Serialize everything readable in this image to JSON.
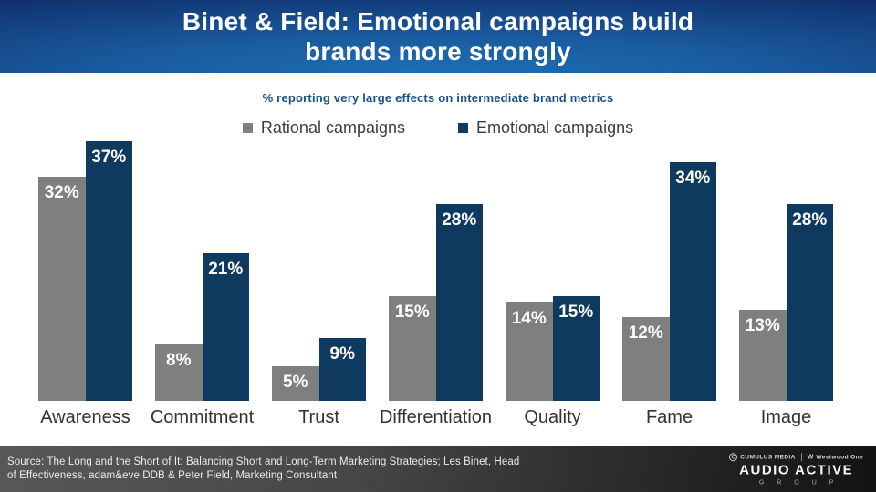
{
  "header": {
    "title_line1": "Binet & Field: Emotional campaigns build",
    "title_line2": "brands more strongly"
  },
  "subtitle": "% reporting very  large effects on intermediate brand metrics",
  "legend": [
    {
      "label": "Rational campaigns",
      "color": "#7f7f7f"
    },
    {
      "label": "Emotional campaigns",
      "color": "#0e3a60"
    }
  ],
  "chart_data": {
    "type": "bar",
    "title": "Binet & Field: Emotional campaigns build brands more strongly",
    "subtitle": "% reporting very large effects on intermediate brand metrics",
    "categories": [
      "Awareness",
      "Commitment",
      "Trust",
      "Differentiation",
      "Quality",
      "Fame",
      "Image"
    ],
    "series": [
      {
        "name": "Rational campaigns",
        "color": "#7f7f7f",
        "values": [
          32,
          8,
          5,
          15,
          14,
          12,
          13
        ],
        "labels": [
          "32%",
          "8%",
          "5%",
          "15%",
          "14%",
          "12%",
          "13%"
        ]
      },
      {
        "name": "Emotional campaigns",
        "color": "#0e3a60",
        "values": [
          37,
          21,
          9,
          28,
          15,
          34,
          28
        ],
        "labels": [
          "37%",
          "21%",
          "9%",
          "28%",
          "15%",
          "34%",
          "28%"
        ]
      }
    ],
    "ylim": [
      0,
      40
    ],
    "grid": false,
    "legend_position": "top",
    "value_label_position": "inside-top",
    "unit": "%"
  },
  "footer": {
    "source_line1": "Source: The Long and the Short of It: Balancing Short and Long-Term Marketing Strategies; Les Binet, Head",
    "source_line2": "of Effectiveness, adam&eve DDB &  Peter Field, Marketing Consultant"
  },
  "branding": {
    "cumulus_icon": "C",
    "cumulus": "CUMULUS MEDIA",
    "westwood_mark": "W",
    "westwood": "Westwood One",
    "audio_active": "AUDIO ACTIVE",
    "group": "G R O U P"
  }
}
